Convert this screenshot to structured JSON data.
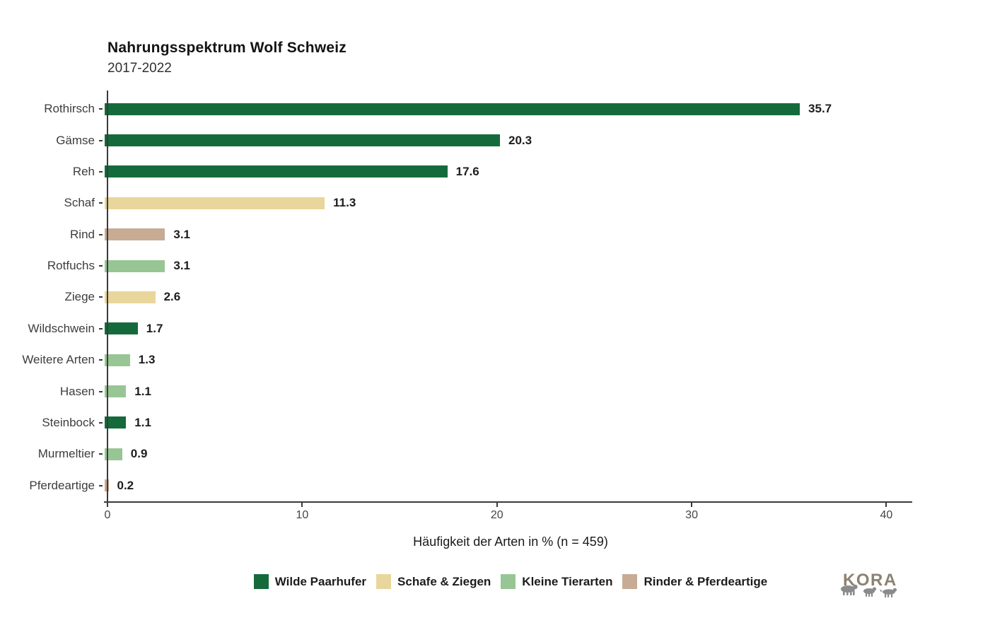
{
  "title": "Nahrungsspektrum Wolf Schweiz",
  "subtitle": "2017-2022",
  "chart_data": {
    "type": "bar",
    "orientation": "horizontal",
    "title": "Nahrungsspektrum Wolf Schweiz",
    "subtitle": "2017-2022",
    "categories": [
      "Rothirsch",
      "Gämse",
      "Reh",
      "Schaf",
      "Rind",
      "Rotfuchs",
      "Ziege",
      "Wildschwein",
      "Weitere Arten",
      "Hasen",
      "Steinbock",
      "Murmeltier",
      "Pferdeartige"
    ],
    "values": [
      35.7,
      20.3,
      17.6,
      11.3,
      3.1,
      3.1,
      2.6,
      1.7,
      1.3,
      1.1,
      1.1,
      0.9,
      0.2
    ],
    "groups": [
      "wilde_paarhufer",
      "wilde_paarhufer",
      "wilde_paarhufer",
      "schafe_ziegen",
      "rinder_pferdeartige",
      "kleine_tierarten",
      "schafe_ziegen",
      "wilde_paarhufer",
      "kleine_tierarten",
      "kleine_tierarten",
      "wilde_paarhufer",
      "kleine_tierarten",
      "rinder_pferdeartige"
    ],
    "palette": {
      "wilde_paarhufer": "#156a3b",
      "schafe_ziegen": "#e9d69c",
      "kleine_tierarten": "#97c694",
      "rinder_pferdeartige": "#c7ab93"
    },
    "legend": [
      {
        "label": "Wilde Paarhufer",
        "key": "wilde_paarhufer",
        "color": "#156a3b"
      },
      {
        "label": "Schafe & Ziegen",
        "key": "schafe_ziegen",
        "color": "#e9d69c"
      },
      {
        "label": "Kleine Tierarten",
        "key": "kleine_tierarten",
        "color": "#97c694"
      },
      {
        "label": "Rinder & Pferdeartige",
        "key": "rinder_pferdeartige",
        "color": "#c7ab93"
      }
    ],
    "legend_position": "bottom",
    "xlabel": "Häufigkeit der Arten in % (n = 459)",
    "ylabel": "",
    "xticks": [
      0,
      10,
      20,
      30,
      40
    ],
    "xlim": [
      0,
      41.4
    ],
    "grid": false,
    "value_labels": true,
    "axis_color": "#3a3a3a"
  },
  "logo": {
    "text": "KORA"
  }
}
